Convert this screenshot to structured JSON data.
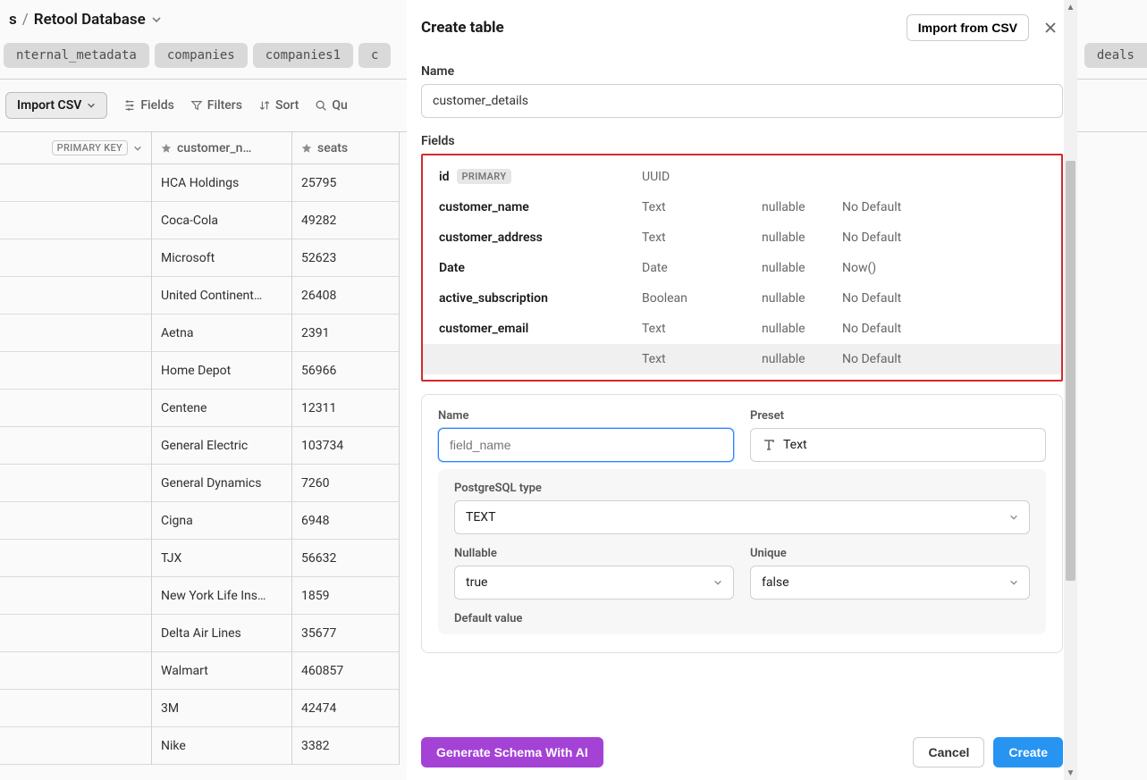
{
  "breadcrumb": {
    "prefix": "s",
    "sep": "/",
    "db": "Retool Database"
  },
  "tabs": [
    "nternal_metadata",
    "companies",
    "companies1",
    "c"
  ],
  "deals_tab": "deals",
  "toolbar": {
    "import": "Import CSV",
    "fields": "Fields",
    "filters": "Filters",
    "sort": "Sort",
    "query": "Qu"
  },
  "bg_table": {
    "pk_label": "PRIMARY KEY",
    "col_name": "customer_n…",
    "col_seats": "seats",
    "rows": [
      {
        "name": "HCA Holdings",
        "seats": "25795"
      },
      {
        "name": "Coca-Cola",
        "seats": "49282"
      },
      {
        "name": "Microsoft",
        "seats": "52623"
      },
      {
        "name": "United Continent…",
        "seats": "26408"
      },
      {
        "name": "Aetna",
        "seats": "2391"
      },
      {
        "name": "Home Depot",
        "seats": "56966"
      },
      {
        "name": "Centene",
        "seats": "12311"
      },
      {
        "name": "General Electric",
        "seats": "103734"
      },
      {
        "name": "General Dynamics",
        "seats": "7260"
      },
      {
        "name": "Cigna",
        "seats": "6948"
      },
      {
        "name": "TJX",
        "seats": "56632"
      },
      {
        "name": "New York Life Ins…",
        "seats": "1859"
      },
      {
        "name": "Delta Air Lines",
        "seats": "35677"
      },
      {
        "name": "Walmart",
        "seats": "460857"
      },
      {
        "name": "3M",
        "seats": "42474"
      },
      {
        "name": "Nike",
        "seats": "3382"
      }
    ]
  },
  "modal": {
    "title": "Create table",
    "import_csv": "Import from CSV",
    "name_label": "Name",
    "name_value": "customer_details",
    "fields_label": "Fields",
    "fields": [
      {
        "name": "id",
        "badge": "PRIMARY",
        "type": "UUID",
        "nullable": "",
        "def": ""
      },
      {
        "name": "customer_name",
        "type": "Text",
        "nullable": "nullable",
        "def": "No Default"
      },
      {
        "name": "customer_address",
        "type": "Text",
        "nullable": "nullable",
        "def": "No Default"
      },
      {
        "name": "Date",
        "type": "Date",
        "nullable": "nullable",
        "def": "Now()"
      },
      {
        "name": "active_subscription",
        "type": "Boolean",
        "nullable": "nullable",
        "def": "No Default"
      },
      {
        "name": "customer_email",
        "type": "Text",
        "nullable": "nullable",
        "def": "No Default"
      },
      {
        "name": "",
        "type": "Text",
        "nullable": "nullable",
        "def": "No Default",
        "selected": true
      }
    ],
    "editor": {
      "name_label": "Name",
      "name_placeholder": "field_name",
      "preset_label": "Preset",
      "preset_value": "Text",
      "pg_type_label": "PostgreSQL type",
      "pg_type_value": "TEXT",
      "nullable_label": "Nullable",
      "nullable_value": "true",
      "unique_label": "Unique",
      "unique_value": "false",
      "default_label": "Default value"
    },
    "footer": {
      "ai": "Generate Schema With AI",
      "cancel": "Cancel",
      "create": "Create"
    }
  },
  "colors": {
    "highlight_border": "#d02c2c",
    "btn_ai": "#a442d6",
    "btn_create": "#2794f2",
    "focus": "#2684ff"
  }
}
